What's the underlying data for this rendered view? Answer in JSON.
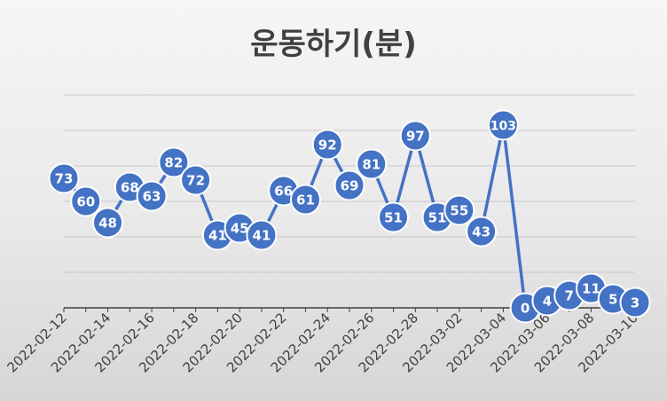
{
  "chart_data": {
    "type": "line",
    "title": "운동하기(분)",
    "xlabel": "",
    "ylabel": "",
    "x": [
      "2022-02-12",
      "2022-02-13",
      "2022-02-14",
      "2022-02-15",
      "2022-02-16",
      "2022-02-17",
      "2022-02-18",
      "2022-02-19",
      "2022-02-20",
      "2022-02-21",
      "2022-02-22",
      "2022-02-23",
      "2022-02-24",
      "2022-02-25",
      "2022-02-26",
      "2022-02-27",
      "2022-02-28",
      "2022-03-01",
      "2022-03-02",
      "2022-03-03",
      "2022-03-04",
      "2022-03-05",
      "2022-03-06",
      "2022-03-07",
      "2022-03-08",
      "2022-03-09",
      "2022-03-10"
    ],
    "x_tick_labels": [
      "2022-02-12",
      "2022-02-14",
      "2022-02-16",
      "2022-02-18",
      "2022-02-20",
      "2022-02-22",
      "2022-02-24",
      "2022-02-26",
      "2022-02-28",
      "2022-03-02",
      "2022-03-04",
      "2022-03-06",
      "2022-03-08",
      "2022-03-10"
    ],
    "values": [
      73,
      60,
      48,
      68,
      63,
      82,
      72,
      41,
      45,
      41,
      66,
      61,
      92,
      69,
      81,
      51,
      97,
      51,
      55,
      43,
      103,
      0,
      4,
      7,
      11,
      5,
      3
    ],
    "ylim": [
      0,
      120
    ],
    "y_axis_labels_visible": false,
    "grid": true,
    "legend": "none",
    "data_labels": true,
    "colors": {
      "line": "#4472C4",
      "marker_fill": "#4472C4",
      "marker_border": "#ffffff",
      "label_text": "#ffffff",
      "grid": "#c8c8c8",
      "axis": "#404040",
      "tick_text": "#404040",
      "title": "#404040"
    }
  }
}
